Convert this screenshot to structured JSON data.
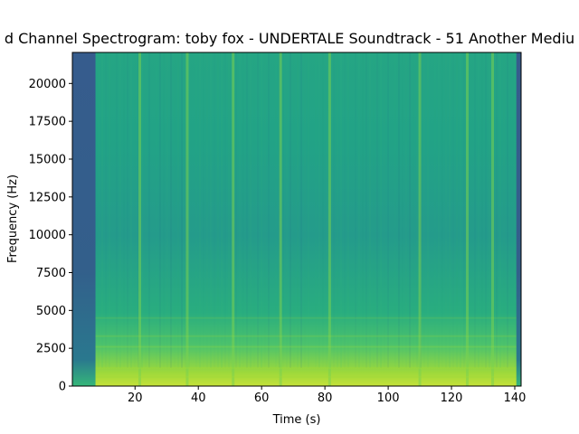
{
  "chart_data": {
    "type": "heatmap",
    "title": "d Channel Spectrogram: toby fox - UNDERTALE Soundtrack - 51 Another Mediu",
    "xlabel": "Time (s)",
    "ylabel": "Frequency (Hz)",
    "xlim": [
      0.2,
      142
    ],
    "ylim": [
      0,
      22050
    ],
    "x_ticks": [
      20,
      40,
      60,
      80,
      100,
      120,
      140
    ],
    "y_ticks": [
      0,
      2500,
      5000,
      7500,
      10000,
      12500,
      15000,
      17500,
      20000
    ],
    "colormap": "viridis",
    "grid": false,
    "quiet_segments_s": [
      [
        0.2,
        7.5
      ],
      [
        140.5,
        142
      ]
    ],
    "transient_lines_s": [
      21.5,
      36.5,
      51,
      66,
      81.5,
      110,
      125,
      133
    ],
    "low_frequency_band_hz": [
      0,
      1500
    ]
  }
}
